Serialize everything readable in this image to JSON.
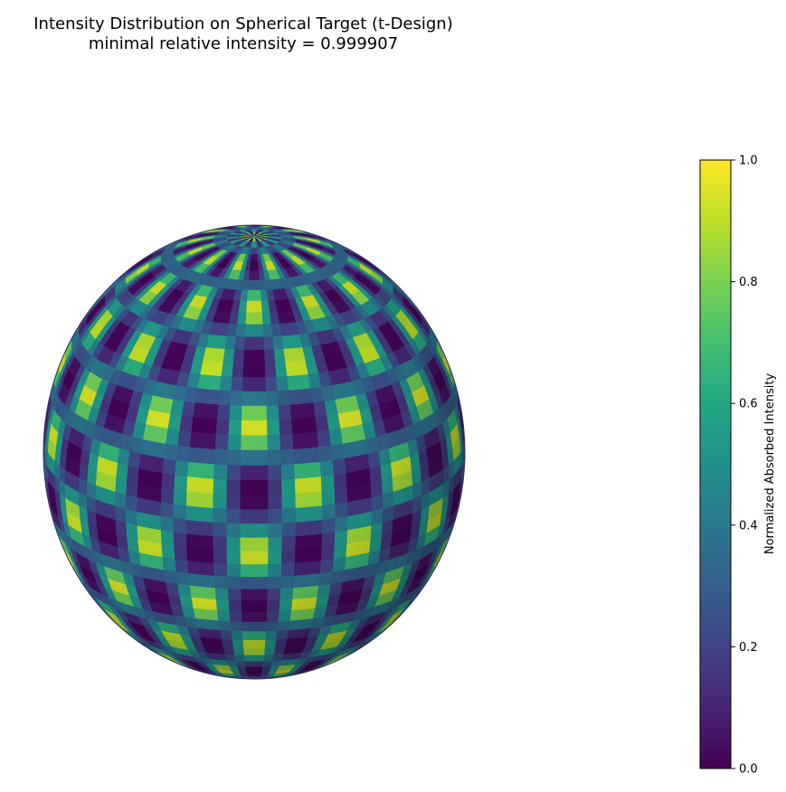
{
  "chart_data": {
    "type": "heatmap",
    "title": "Intensity Distribution on Spherical Target (t-Design)",
    "subtitle": "minimal relative intensity = 0.999907",
    "colorbar": {
      "label": "Normalized Absorbed Intensity",
      "range": [
        0,
        1
      ],
      "ticks": [
        "0.0",
        "0.2",
        "0.4",
        "0.6",
        "0.8",
        "1.0"
      ],
      "colormap": "viridis",
      "placement": "right"
    },
    "surface": {
      "shape": "sphere",
      "pattern": "periodic hot spots arranged in latitude bands",
      "value_range": [
        0,
        1
      ]
    },
    "grid": false
  }
}
